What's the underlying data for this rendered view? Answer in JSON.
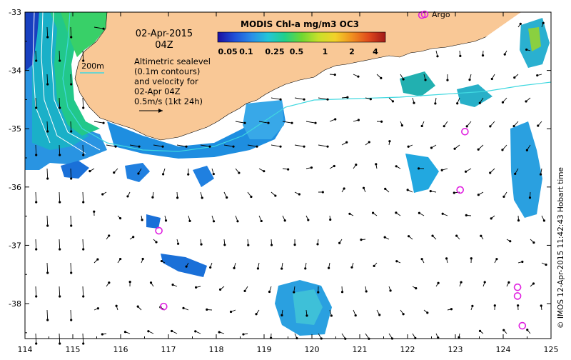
{
  "map": {
    "title_date": "02-Apr-2015",
    "title_time": "04Z",
    "legend_title": "MODIS Chl-a mg/m3 OC3",
    "colorbar_ticks": [
      "0.05",
      "0.1",
      "0.25",
      "0.5",
      "1",
      "2",
      "4"
    ],
    "colorbar_colors": [
      "#1b0fa0",
      "#1f4fd8",
      "#2a8ce8",
      "#22c6d8",
      "#20d08a",
      "#6ed832",
      "#c8e02a",
      "#f2d22a",
      "#f09020",
      "#e04a1c",
      "#a01818"
    ],
    "contour_label": "200m",
    "description_lines": [
      "Altimetric sealevel",
      "(0.1m contours)",
      "and velocity for",
      "02-Apr 04Z",
      "0.5m/s (1kt 24h)"
    ],
    "argo_label": "Argo",
    "credit": "© IMOS 12-Apr-2015 11:42:43 Hobart time",
    "lon_ticks": [
      "114",
      "115",
      "116",
      "117",
      "118",
      "119",
      "120",
      "121",
      "122",
      "123",
      "124",
      "125"
    ],
    "lat_ticks": [
      "-33",
      "-34",
      "-35",
      "-36",
      "-37",
      "-38"
    ],
    "lon_range": [
      114,
      125
    ],
    "lat_range": [
      -38.6,
      -33
    ],
    "colors": {
      "land": "#f9c896",
      "land_edge": "#000000",
      "contour_200m": "#40d8e0",
      "argo": "#e020e0",
      "arrow": "#000000"
    },
    "argo_floats": [
      {
        "lon": 122.3,
        "lat": -33.05
      },
      {
        "lon": 123.2,
        "lat": -35.05
      },
      {
        "lon": 123.1,
        "lat": -36.05
      },
      {
        "lon": 116.8,
        "lat": -36.75
      },
      {
        "lon": 116.9,
        "lat": -38.05
      },
      {
        "lon": 124.3,
        "lat": -37.72
      },
      {
        "lon": 124.3,
        "lat": -37.87
      },
      {
        "lon": 124.4,
        "lat": -38.38
      }
    ]
  }
}
